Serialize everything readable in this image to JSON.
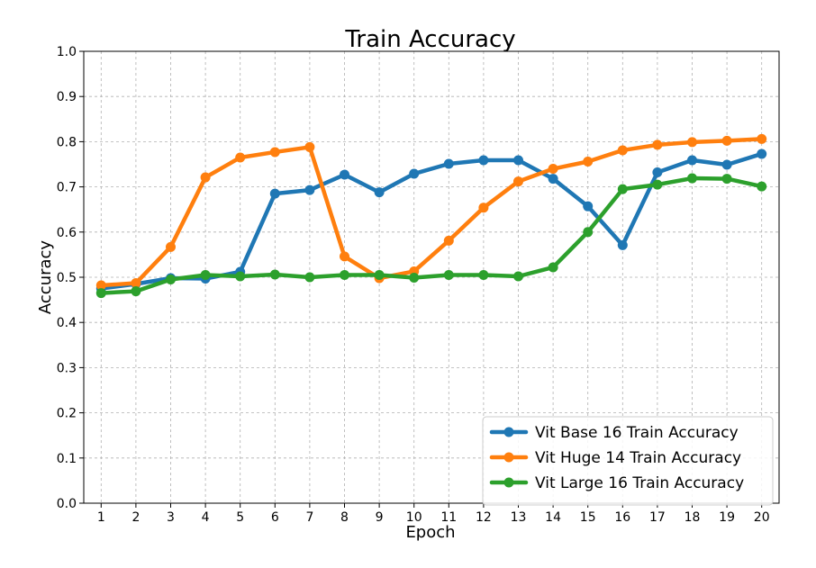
{
  "chart_data": {
    "type": "line",
    "title": "Train Accuracy",
    "xlabel": "Epoch",
    "ylabel": "Accuracy",
    "x": [
      1,
      2,
      3,
      4,
      5,
      6,
      7,
      8,
      9,
      10,
      11,
      12,
      13,
      14,
      15,
      16,
      17,
      18,
      19,
      20
    ],
    "xlim": [
      0.5,
      20.5
    ],
    "ylim": [
      0,
      1.0
    ],
    "yticks": [
      "0.0",
      "0.1",
      "0.2",
      "0.3",
      "0.4",
      "0.5",
      "0.6",
      "0.7",
      "0.8",
      "0.9",
      "1.0"
    ],
    "xticks": [
      "1",
      "2",
      "3",
      "4",
      "5",
      "6",
      "7",
      "8",
      "9",
      "10",
      "11",
      "12",
      "13",
      "14",
      "15",
      "16",
      "17",
      "18",
      "19",
      "20"
    ],
    "grid": true,
    "legend_position": "bottom-right",
    "series": [
      {
        "name": "Vit Base 16 Train Accuracy",
        "color": "#1f77b4",
        "values": [
          0.475,
          0.485,
          0.498,
          0.497,
          0.512,
          0.685,
          0.693,
          0.727,
          0.688,
          0.729,
          0.751,
          0.759,
          0.759,
          0.718,
          0.657,
          0.571,
          0.732,
          0.759,
          0.749,
          0.773
        ]
      },
      {
        "name": "Vit Huge 14 Train Accuracy",
        "color": "#ff7f0e",
        "values": [
          0.482,
          0.487,
          0.567,
          0.721,
          0.765,
          0.777,
          0.788,
          0.546,
          0.498,
          0.513,
          0.581,
          0.654,
          0.712,
          0.74,
          0.756,
          0.781,
          0.793,
          0.799,
          0.802,
          0.806
        ]
      },
      {
        "name": "Vit Large 16 Train Accuracy",
        "color": "#2ca02c",
        "values": [
          0.465,
          0.469,
          0.495,
          0.505,
          0.502,
          0.506,
          0.5,
          0.505,
          0.505,
          0.499,
          0.505,
          0.505,
          0.502,
          0.522,
          0.6,
          0.695,
          0.705,
          0.719,
          0.718,
          0.701
        ]
      }
    ]
  }
}
